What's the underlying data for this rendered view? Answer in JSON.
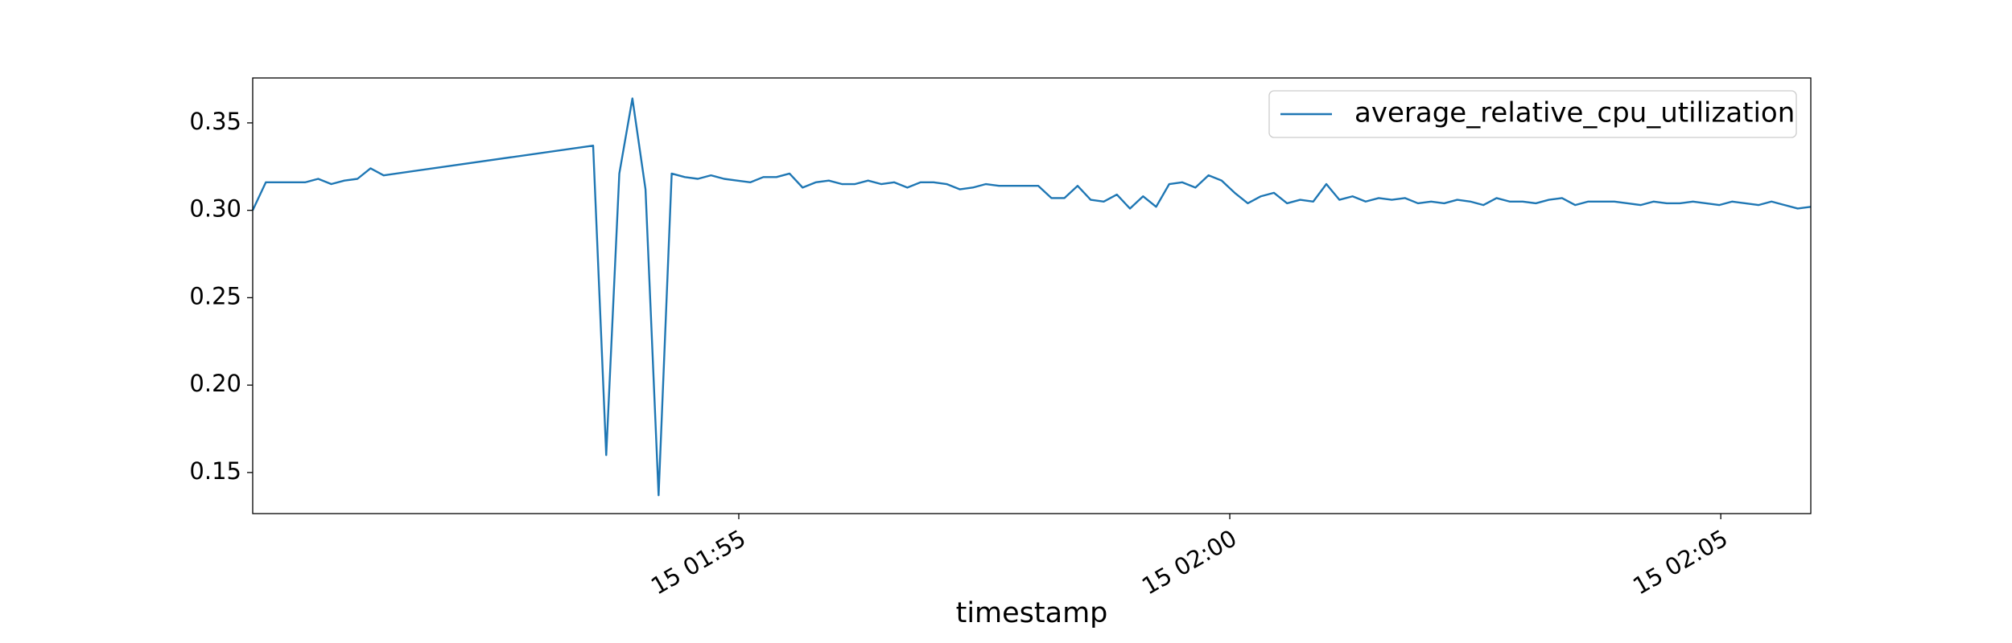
{
  "chart_data": {
    "type": "line",
    "xlabel": "timestamp",
    "x": [
      "15 01:50:03",
      "15 01:50:11",
      "15 01:50:19",
      "15 01:50:27",
      "15 01:50:35",
      "15 01:50:43",
      "15 01:50:51",
      "15 01:50:59",
      "15 01:51:07",
      "15 01:51:15",
      "15 01:51:23",
      "15 01:53:31",
      "15 01:53:39",
      "15 01:53:47",
      "15 01:53:55",
      "15 01:54:03",
      "15 01:54:11",
      "15 01:54:19",
      "15 01:54:27",
      "15 01:54:35",
      "15 01:54:43",
      "15 01:54:51",
      "15 01:54:59",
      "15 01:55:07",
      "15 01:55:15",
      "15 01:55:23",
      "15 01:55:31",
      "15 01:55:39",
      "15 01:55:47",
      "15 01:55:55",
      "15 01:56:03",
      "15 01:56:11",
      "15 01:56:19",
      "15 01:56:27",
      "15 01:56:35",
      "15 01:56:43",
      "15 01:56:51",
      "15 01:56:59",
      "15 01:57:07",
      "15 01:57:15",
      "15 01:57:23",
      "15 01:57:31",
      "15 01:57:39",
      "15 01:57:47",
      "15 01:57:55",
      "15 01:58:03",
      "15 01:58:11",
      "15 01:58:19",
      "15 01:58:27",
      "15 01:58:35",
      "15 01:58:43",
      "15 01:58:51",
      "15 01:58:59",
      "15 01:59:07",
      "15 01:59:15",
      "15 01:59:23",
      "15 01:59:31",
      "15 01:59:39",
      "15 01:59:47",
      "15 01:59:55",
      "15 02:00:03",
      "15 02:00:11",
      "15 02:00:19",
      "15 02:00:27",
      "15 02:00:35",
      "15 02:00:43",
      "15 02:00:51",
      "15 02:00:59",
      "15 02:01:07",
      "15 02:01:15",
      "15 02:01:23",
      "15 02:01:31",
      "15 02:01:39",
      "15 02:01:47",
      "15 02:01:55",
      "15 02:02:03",
      "15 02:02:11",
      "15 02:02:19",
      "15 02:02:27",
      "15 02:02:35",
      "15 02:02:43",
      "15 02:02:51",
      "15 02:02:59",
      "15 02:03:07",
      "15 02:03:15",
      "15 02:03:23",
      "15 02:03:31",
      "15 02:03:39",
      "15 02:03:47",
      "15 02:03:55",
      "15 02:04:03",
      "15 02:04:11",
      "15 02:04:19",
      "15 02:04:27",
      "15 02:04:35",
      "15 02:04:43",
      "15 02:04:51",
      "15 02:04:59",
      "15 02:05:07",
      "15 02:05:15",
      "15 02:05:23",
      "15 02:05:31",
      "15 02:05:39",
      "15 02:05:47",
      "15 02:05:55"
    ],
    "series": [
      {
        "name": "average_relative_cpu_utilization",
        "color": "#1f77b4",
        "values": [
          0.3,
          0.316,
          0.316,
          0.316,
          0.316,
          0.318,
          0.315,
          0.317,
          0.318,
          0.324,
          0.32,
          0.337,
          0.16,
          0.321,
          0.364,
          0.312,
          0.137,
          0.321,
          0.319,
          0.318,
          0.32,
          0.318,
          0.317,
          0.316,
          0.319,
          0.319,
          0.321,
          0.313,
          0.316,
          0.317,
          0.315,
          0.315,
          0.317,
          0.315,
          0.316,
          0.313,
          0.316,
          0.316,
          0.315,
          0.312,
          0.313,
          0.315,
          0.314,
          0.314,
          0.314,
          0.314,
          0.307,
          0.307,
          0.314,
          0.306,
          0.305,
          0.309,
          0.301,
          0.308,
          0.302,
          0.315,
          0.316,
          0.313,
          0.32,
          0.317,
          0.31,
          0.304,
          0.308,
          0.31,
          0.304,
          0.306,
          0.305,
          0.315,
          0.306,
          0.308,
          0.305,
          0.307,
          0.306,
          0.307,
          0.304,
          0.305,
          0.304,
          0.306,
          0.305,
          0.303,
          0.307,
          0.305,
          0.305,
          0.304,
          0.306,
          0.307,
          0.303,
          0.305,
          0.305,
          0.305,
          0.304,
          0.303,
          0.305,
          0.304,
          0.304,
          0.305,
          0.304,
          0.303,
          0.305,
          0.304,
          0.303,
          0.305,
          0.303,
          0.301,
          0.302
        ]
      }
    ],
    "xlim": [
      "15 01:50:03",
      "15 02:05:55"
    ],
    "xticks": [
      {
        "value": "15 01:55:00",
        "label": "15 01:55"
      },
      {
        "value": "15 02:00:00",
        "label": "15 02:00"
      },
      {
        "value": "15 02:05:00",
        "label": "15 02:05"
      }
    ],
    "ylim": [
      0.1265,
      0.3757
    ],
    "yticks": [
      0.15,
      {
        "value": 0.2,
        "label": "0.20"
      },
      0.25,
      {
        "value": 0.3,
        "label": "0.30"
      },
      0.35
    ],
    "legend": "upper right"
  }
}
